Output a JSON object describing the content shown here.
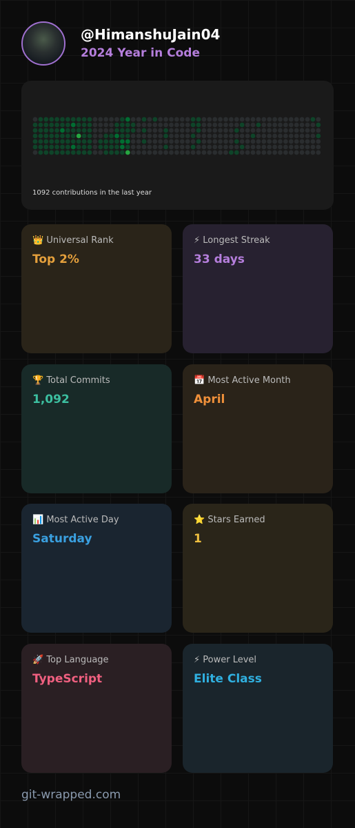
{
  "header": {
    "username": "@HimanshuJain04",
    "subtitle": "2024 Year in Code"
  },
  "contributions": {
    "caption": "1092 contributions in the last year",
    "rows": [
      [
        0,
        1,
        1,
        1,
        1,
        1,
        1,
        1,
        1,
        1,
        1,
        0,
        0,
        0,
        0,
        0,
        1,
        2,
        0,
        0,
        1,
        0,
        1,
        0,
        0,
        0,
        0,
        0,
        0,
        1,
        1,
        0,
        0,
        0,
        0,
        0,
        0,
        0,
        0,
        0,
        0,
        0,
        0,
        0,
        0,
        0,
        0,
        0,
        0,
        0,
        0,
        1,
        0
      ],
      [
        1,
        1,
        1,
        1,
        1,
        1,
        1,
        2,
        1,
        1,
        1,
        0,
        0,
        0,
        0,
        1,
        1,
        1,
        1,
        0,
        0,
        0,
        0,
        0,
        0,
        0,
        0,
        0,
        0,
        1,
        1,
        0,
        0,
        0,
        0,
        0,
        0,
        0,
        1,
        0,
        0,
        1,
        0,
        0,
        0,
        0,
        0,
        0,
        0,
        0,
        0,
        0,
        1
      ],
      [
        1,
        1,
        1,
        1,
        1,
        2,
        1,
        1,
        1,
        1,
        1,
        0,
        0,
        0,
        0,
        1,
        1,
        1,
        1,
        0,
        1,
        0,
        0,
        0,
        1,
        0,
        0,
        0,
        0,
        0,
        1,
        0,
        0,
        0,
        0,
        0,
        0,
        1,
        0,
        0,
        0,
        0,
        0,
        0,
        0,
        0,
        0,
        0,
        0,
        0,
        0,
        0,
        0
      ],
      [
        1,
        1,
        1,
        1,
        1,
        1,
        1,
        1,
        3,
        1,
        1,
        0,
        0,
        1,
        1,
        2,
        1,
        1,
        0,
        0,
        0,
        0,
        0,
        0,
        1,
        0,
        0,
        0,
        0,
        1,
        0,
        0,
        0,
        0,
        0,
        0,
        0,
        0,
        0,
        0,
        1,
        0,
        0,
        0,
        0,
        0,
        0,
        0,
        0,
        0,
        0,
        0,
        1
      ],
      [
        1,
        1,
        1,
        1,
        1,
        1,
        1,
        1,
        1,
        1,
        1,
        0,
        1,
        1,
        1,
        1,
        2,
        2,
        0,
        0,
        1,
        0,
        0,
        0,
        0,
        0,
        0,
        0,
        0,
        0,
        1,
        0,
        0,
        0,
        0,
        0,
        0,
        1,
        0,
        0,
        0,
        0,
        0,
        0,
        0,
        0,
        0,
        0,
        0,
        0,
        0,
        0,
        0
      ],
      [
        1,
        1,
        1,
        1,
        1,
        1,
        1,
        2,
        1,
        1,
        1,
        0,
        1,
        1,
        1,
        1,
        2,
        1,
        0,
        0,
        0,
        0,
        0,
        0,
        1,
        0,
        0,
        0,
        0,
        1,
        0,
        0,
        0,
        0,
        0,
        0,
        0,
        0,
        1,
        0,
        0,
        0,
        0,
        0,
        0,
        0,
        0,
        0,
        0,
        0,
        0,
        0,
        0
      ],
      [
        0,
        1,
        1,
        1,
        1,
        1,
        1,
        1,
        1,
        1,
        1,
        0,
        0,
        1,
        1,
        1,
        1,
        3,
        0,
        0,
        0,
        0,
        0,
        0,
        0,
        0,
        0,
        0,
        0,
        0,
        0,
        0,
        0,
        0,
        0,
        0,
        1,
        1,
        0,
        0,
        0,
        0,
        0,
        0,
        0,
        0,
        0,
        0,
        0,
        0,
        0,
        0,
        0
      ]
    ]
  },
  "stats": [
    {
      "label": "👑 Universal Rank",
      "value": "Top 2%"
    },
    {
      "label": "⚡ Longest Streak",
      "value": "33 days"
    },
    {
      "label": "🏆 Total Commits",
      "value": "1,092"
    },
    {
      "label": "📅 Most Active Month",
      "value": "April"
    },
    {
      "label": "📊 Most Active Day",
      "value": "Saturday"
    },
    {
      "label": "⭐ Stars Earned",
      "value": "1"
    },
    {
      "label": "🚀 Top Language",
      "value": "TypeScript"
    },
    {
      "label": "⚡ Power Level",
      "value": "Elite Class"
    }
  ],
  "footer": "git-wrapped.com"
}
